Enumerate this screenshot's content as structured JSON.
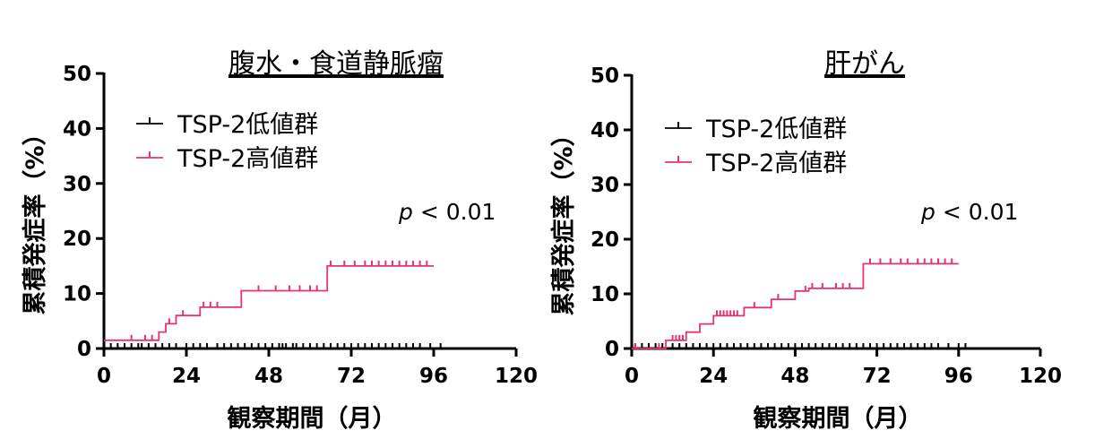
{
  "chart_data": [
    {
      "type": "line",
      "title": "腹水・食道静脈瘤",
      "xlabel": "観察期間（月）",
      "ylabel": "累積発症率（%）",
      "xlim": [
        0,
        120
      ],
      "ylim": [
        0,
        50
      ],
      "xticks": [
        "0",
        "24",
        "48",
        "72",
        "96",
        "120"
      ],
      "yticks": [
        "0",
        "10",
        "20",
        "30",
        "40",
        "50"
      ],
      "annotation": {
        "italic": "p",
        "rest": " < 0.01"
      },
      "legend_position": "top-left",
      "series": [
        {
          "name": "TSP-2低値群",
          "color": "#000000",
          "x": [
            0,
            100
          ],
          "y": [
            0,
            0
          ],
          "censored_x": [
            2,
            4,
            6,
            8,
            10,
            11,
            13,
            15,
            17,
            19,
            21,
            24,
            26,
            28,
            30,
            33,
            35,
            37,
            39,
            41,
            43,
            45,
            47,
            49,
            51,
            52,
            53,
            55,
            56,
            58,
            60,
            62,
            64,
            66,
            68,
            70,
            72,
            74,
            76,
            78,
            80,
            82,
            84,
            86,
            88,
            90,
            92,
            95,
            98
          ]
        },
        {
          "name": "TSP-2高値群",
          "color": "#e8336e",
          "x": [
            0,
            16,
            16,
            18,
            18,
            21,
            21,
            28,
            28,
            40,
            40,
            65,
            65,
            96
          ],
          "y": [
            1.5,
            1.5,
            3,
            3,
            4.5,
            4.5,
            6,
            6,
            7.5,
            7.5,
            10.5,
            10.5,
            15,
            15
          ],
          "censored_x": [
            8,
            12,
            14,
            19,
            23,
            29,
            31,
            33,
            45,
            50,
            54,
            57,
            60,
            62,
            66,
            70,
            73,
            76,
            78,
            80,
            82,
            84,
            86,
            88,
            90,
            92,
            94
          ]
        }
      ]
    },
    {
      "type": "line",
      "title": "肝がん",
      "xlabel": "観察期間（月）",
      "ylabel": "累積発症率（%）",
      "xlim": [
        0,
        120
      ],
      "ylim": [
        0,
        50
      ],
      "xticks": [
        "0",
        "24",
        "48",
        "72",
        "96",
        "120"
      ],
      "yticks": [
        "0",
        "10",
        "20",
        "30",
        "40",
        "50"
      ],
      "annotation": {
        "italic": "p",
        "rest": " < 0.01"
      },
      "legend_position": "top-left",
      "series": [
        {
          "name": "TSP-2低値群",
          "color": "#000000",
          "x": [
            0,
            98
          ],
          "y": [
            0,
            0
          ],
          "censored_x": [
            1,
            3,
            5,
            7,
            9,
            12,
            14,
            16,
            18,
            20,
            22,
            24,
            26,
            28,
            30,
            32,
            34,
            36,
            38,
            40,
            42,
            44,
            46,
            48,
            50,
            52,
            54,
            56,
            58,
            60,
            62,
            64,
            66,
            68,
            70,
            72,
            74,
            76,
            78,
            80,
            82,
            84,
            86,
            88,
            90,
            93,
            96,
            98
          ]
        },
        {
          "name": "TSP-2高値群",
          "color": "#e8336e",
          "x": [
            0,
            10,
            10,
            16,
            16,
            20,
            20,
            24,
            24,
            33,
            33,
            41,
            41,
            48,
            48,
            52,
            52,
            68,
            68,
            96
          ],
          "y": [
            0,
            0,
            1.5,
            1.5,
            3,
            3,
            4.5,
            4.5,
            6,
            6,
            7.5,
            7.5,
            9,
            9,
            10.5,
            10.5,
            11,
            11,
            15.5,
            15.5
          ],
          "censored_x": [
            1,
            8,
            12,
            13,
            14,
            15,
            25,
            26,
            27,
            28,
            29,
            30,
            31,
            36,
            43,
            51,
            53,
            56,
            60,
            62,
            64,
            70,
            73,
            76,
            79,
            81,
            84,
            86,
            88,
            90,
            92,
            94
          ]
        }
      ]
    }
  ]
}
